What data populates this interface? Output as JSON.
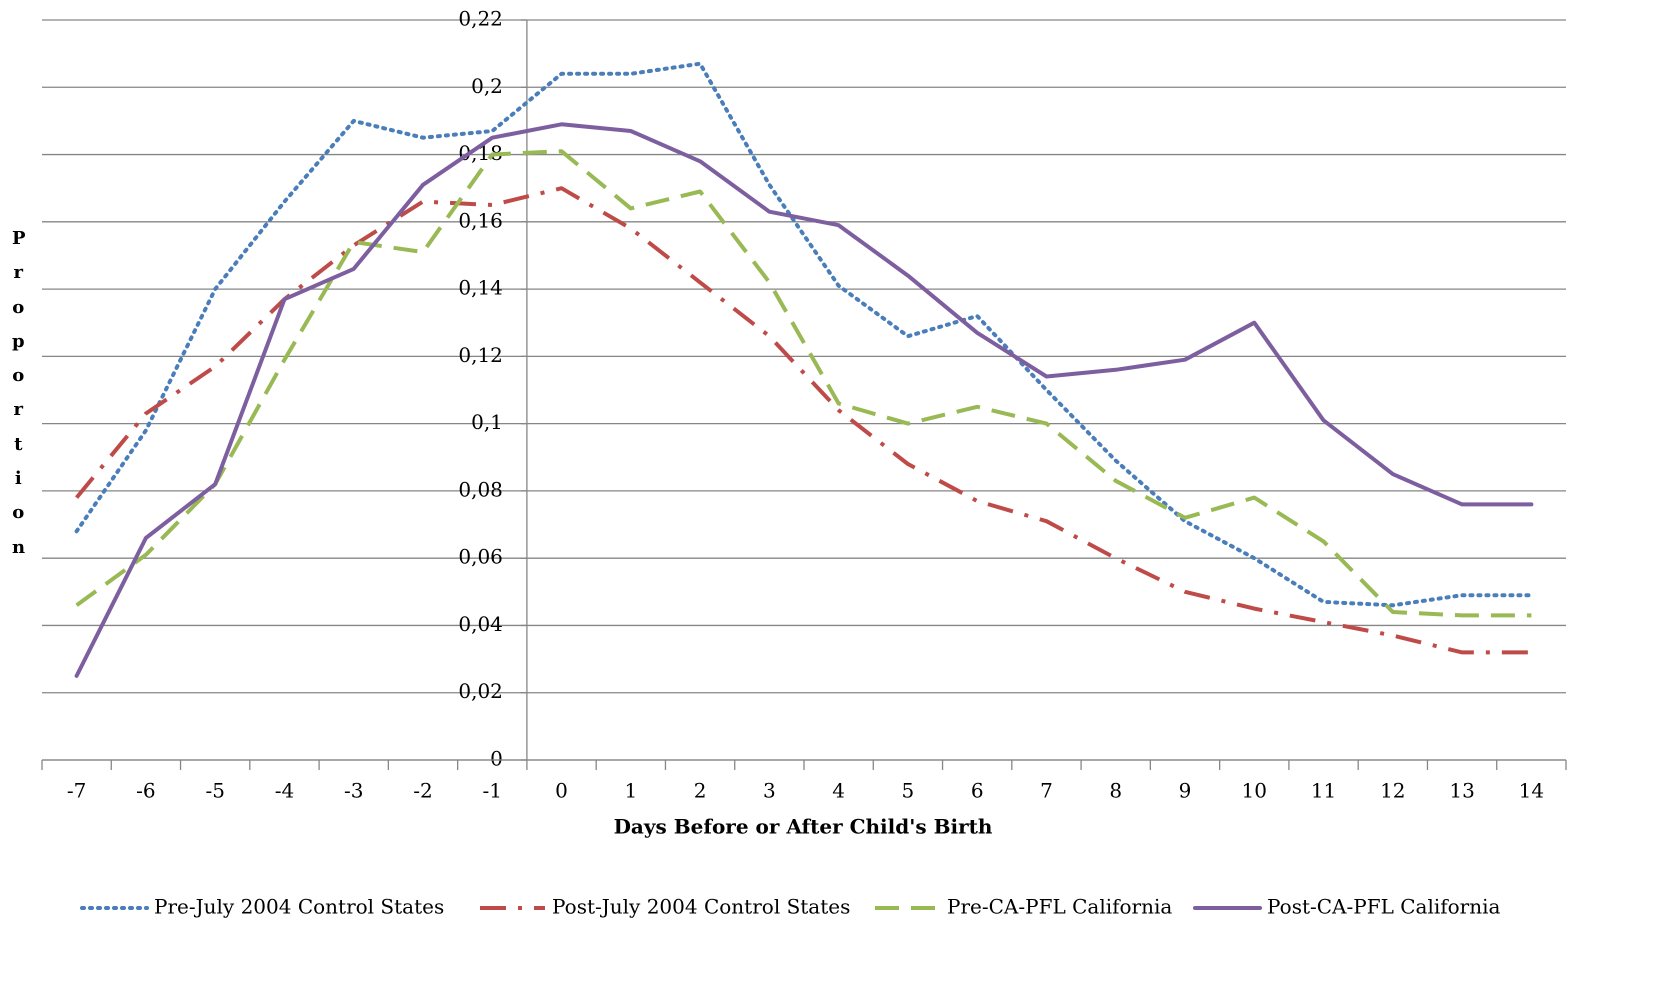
{
  "chart_data": {
    "type": "line",
    "x_label": "Days Before or After Child's Birth",
    "y_label": "Proportion",
    "categories": [
      "-7",
      "-6",
      "-5",
      "-4",
      "-3",
      "-2",
      "-1",
      "0",
      "1",
      "2",
      "3",
      "4",
      "5",
      "6",
      "7",
      "8",
      "9",
      "10",
      "11",
      "12",
      "13",
      "14"
    ],
    "ylim": [
      0,
      0.22
    ],
    "yticks": [
      0,
      {
        "value": 0.02,
        "label": "0,02"
      },
      {
        "value": 0.04,
        "label": "0,04"
      },
      {
        "value": 0.06,
        "label": "0,06"
      },
      {
        "value": 0.08,
        "label": "0,08"
      },
      {
        "value": 0.1,
        "label": "0,1"
      },
      {
        "value": 0.12,
        "label": "0,12"
      },
      {
        "value": 0.14,
        "label": "0,14"
      },
      {
        "value": 0.16,
        "label": "0,16"
      },
      {
        "value": 0.18,
        "label": "0,18"
      },
      {
        "value": 0.2,
        "label": "0,2"
      },
      {
        "value": 0.22,
        "label": "0,22"
      }
    ],
    "grid": true,
    "legend": "bottom",
    "series": [
      {
        "name": "Pre-July 2004 Control States",
        "color": "#4a7ebb",
        "style": "dotted",
        "values": [
          0.068,
          0.098,
          0.14,
          0.166,
          0.19,
          0.185,
          0.187,
          0.204,
          0.204,
          0.207,
          0.171,
          0.141,
          0.126,
          0.132,
          0.11,
          0.089,
          0.071,
          0.06,
          0.047,
          0.046,
          0.049,
          0.049
        ]
      },
      {
        "name": "Post-July 2004 Control States",
        "color": "#be4b48",
        "style": "dashdot",
        "values": [
          0.078,
          0.103,
          0.117,
          0.137,
          0.153,
          0.166,
          0.165,
          0.17,
          0.158,
          0.142,
          0.126,
          0.104,
          0.088,
          0.077,
          0.071,
          0.06,
          0.05,
          0.045,
          0.041,
          0.037,
          0.032,
          0.032
        ]
      },
      {
        "name": "Pre-CA-PFL California",
        "color": "#98b954",
        "style": "dashed",
        "values": [
          0.046,
          0.061,
          0.082,
          0.119,
          0.154,
          0.151,
          0.18,
          0.181,
          0.164,
          0.169,
          0.142,
          0.106,
          0.1,
          0.105,
          0.1,
          0.083,
          0.072,
          0.078,
          0.065,
          0.044,
          0.043,
          0.043
        ]
      },
      {
        "name": "Post-CA-PFL California",
        "color": "#7d5fa0",
        "style": "solid",
        "values": [
          0.025,
          0.066,
          0.082,
          0.137,
          0.146,
          0.171,
          0.185,
          0.189,
          0.187,
          0.178,
          0.163,
          0.159,
          0.144,
          0.127,
          0.114,
          0.116,
          0.119,
          0.13,
          0.101,
          0.085,
          0.076,
          0.076
        ]
      }
    ]
  }
}
